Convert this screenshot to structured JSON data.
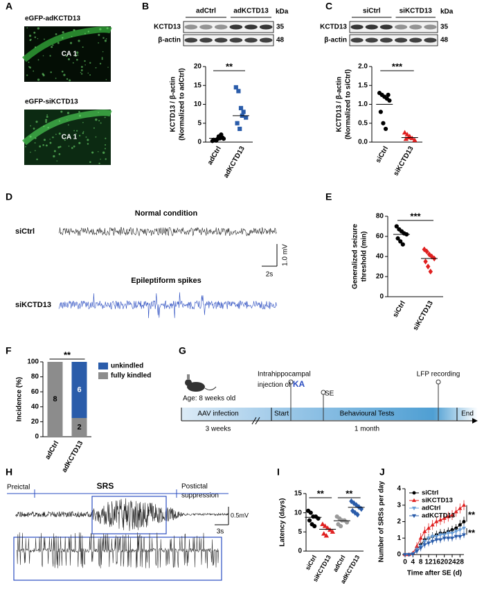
{
  "panel_labels": [
    "A",
    "B",
    "C",
    "D",
    "E",
    "F",
    "G",
    "H",
    "I",
    "J"
  ],
  "panel_a": {
    "captions": [
      "eGFP-adKCTD13",
      "eGFP-siKCTD13"
    ],
    "region_labels": [
      "CA 1",
      "CA 1"
    ]
  },
  "panel_b_blot": {
    "lanes": [
      "adCtrl",
      "adKCTD13"
    ],
    "unit": "kDa",
    "rows": [
      {
        "protein": "KCTD13",
        "kda": 35
      },
      {
        "protein": "β-actin",
        "kda": 48
      }
    ]
  },
  "panel_c_blot": {
    "lanes": [
      "siCtrl",
      "siKCTD13"
    ],
    "unit": "kDa",
    "rows": [
      {
        "protein": "KCTD13",
        "kda": 35
      },
      {
        "protein": "β-actin",
        "kda": 48
      }
    ]
  },
  "panel_d": {
    "conditions": [
      {
        "title": "Normal condition",
        "group": "siCtrl"
      },
      {
        "title": "Epileptiform spikes",
        "group": "siKCTD13"
      }
    ],
    "scale_y": "1.0 mV",
    "scale_x": "2s"
  },
  "panel_g": {
    "age": "Age: 8 weeks old",
    "injection": "Intrahippocampal",
    "injection_of": "injection of",
    "drug": "KA",
    "se": "SE",
    "lfp": "LFP recording",
    "phases": [
      "AAV infection",
      "Start",
      "Behavioural Tests",
      "End"
    ],
    "durations": [
      "3 weeks",
      "1 month"
    ]
  },
  "panel_h": {
    "preictal": "Preictal",
    "srs": "SRS",
    "postictal": [
      "Postictal",
      "suppression"
    ],
    "scale_y": "0.5mV",
    "scale_x": "3s"
  },
  "chart_data": [
    {
      "type": "strip",
      "ylabel": [
        "KCTD13 / β-actin",
        "(Normalized to adCtrl)"
      ],
      "categories": [
        "adCtrl",
        "adKCTD13"
      ],
      "values": [
        [
          0.3,
          0.5,
          0.8,
          1.0,
          1.2,
          0.6,
          0.4,
          1.5,
          2.0,
          0.9
        ],
        [
          14.5,
          13.5,
          9,
          8,
          6.5,
          5,
          3.5,
          7
        ]
      ],
      "means": [
        1,
        7
      ],
      "colors": [
        "#000000",
        "#2a5caa"
      ],
      "markers": [
        "circle",
        "square"
      ],
      "ylim": [
        0,
        20
      ],
      "yticks": [
        0,
        5,
        10,
        15,
        20
      ],
      "annotations": [
        "**"
      ]
    },
    {
      "type": "strip",
      "ylabel": [
        "KCTD13 / β-actin",
        "(Normalized to siCtrl)"
      ],
      "categories": [
        "siCtrl",
        "siKCTD13"
      ],
      "values": [
        [
          1.3,
          1.25,
          1.2,
          1.15,
          1.1,
          0.8,
          0.5,
          0.35,
          1.25
        ],
        [
          0.25,
          0.2,
          0.15,
          0.1,
          0.05,
          0.08,
          0.12
        ]
      ],
      "means": [
        1.0,
        0.12
      ],
      "colors": [
        "#000000",
        "#e02020"
      ],
      "markers": [
        "circle",
        "triangle"
      ],
      "ylim": [
        0,
        2
      ],
      "yticks": [
        {
          "value": 0,
          "label": "0.0"
        },
        0.5,
        {
          "value": 1,
          "label": "1.0"
        },
        1.5,
        {
          "value": 2,
          "label": "2.0"
        }
      ],
      "annotations": [
        "***"
      ]
    },
    {
      "type": "strip",
      "ylabel": [
        "Generalized seizure",
        "threshold (min)"
      ],
      "categories": [
        "siCtrl",
        "siKCTD13"
      ],
      "values": [
        [
          70,
          67,
          65,
          63,
          62,
          58,
          55,
          52
        ],
        [
          47,
          45,
          42,
          40,
          38,
          35,
          30,
          25
        ]
      ],
      "means": [
        62,
        38
      ],
      "colors": [
        "#000000",
        "#e02020"
      ],
      "markers": [
        "circle",
        "diamond"
      ],
      "ylim": [
        0,
        80
      ],
      "yticks": [
        0,
        20,
        40,
        60,
        80
      ],
      "annotations": [
        "***"
      ]
    },
    {
      "type": "stacked-bar",
      "ylabel": "Incidence (%)",
      "categories": [
        "adCtrl",
        "adKCTD13"
      ],
      "series": [
        {
          "name": "fully kindled",
          "color": "#8c8c8c",
          "values": [
            100,
            25
          ],
          "counts": [
            8,
            2
          ]
        },
        {
          "name": "unkindled",
          "color": "#2a5caa",
          "values": [
            0,
            75
          ],
          "counts": [
            null,
            6
          ]
        }
      ],
      "ylim": [
        0,
        100
      ],
      "yticks": [
        0,
        20,
        40,
        60,
        80,
        100
      ],
      "annotations": [
        "**"
      ],
      "legend": "right"
    },
    {
      "type": "strip",
      "ylabel": "Latency (days)",
      "categories": [
        "siCtrl",
        "siKCTD13",
        "adCtrl",
        "adKCTD13"
      ],
      "values": [
        [
          10.5,
          10,
          9,
          9,
          8.5,
          8,
          7,
          6.5
        ],
        [
          7,
          6.5,
          6,
          5.5,
          5,
          4.5,
          4
        ],
        [
          9,
          8.5,
          8,
          8,
          7.5,
          7,
          6.5
        ],
        [
          13,
          12.5,
          12,
          11.5,
          11,
          10.5,
          10,
          9.5
        ]
      ],
      "means": [
        8.8,
        5.7,
        7.9,
        11.4
      ],
      "colors": [
        "#000000",
        "#e02020",
        "#9a9a9a",
        "#2a5caa"
      ],
      "markers": [
        "circle",
        "triangle",
        "circle",
        "diamond"
      ],
      "ylim": [
        0,
        15
      ],
      "yticks": [
        0,
        5,
        10,
        15
      ],
      "annotations": [
        "**",
        "**"
      ]
    },
    {
      "type": "line",
      "ylabel": "Number of SRSs per day",
      "xlabel": "Time after SE (d)",
      "x": [
        0,
        2,
        4,
        6,
        8,
        10,
        12,
        14,
        16,
        18,
        20,
        22,
        24,
        26,
        28,
        30
      ],
      "series": [
        {
          "name": "siCtrl",
          "color": "#000000",
          "marker": "circle",
          "values": [
            0,
            0,
            0.05,
            0.3,
            0.6,
            0.9,
            1.0,
            1.1,
            1.2,
            1.3,
            1.3,
            1.4,
            1.5,
            1.6,
            1.8,
            2.0
          ],
          "errors": [
            0,
            0,
            0.1,
            0.2,
            0.2,
            0.25,
            0.25,
            0.25,
            0.25,
            0.25,
            0.25,
            0.25,
            0.25,
            0.25,
            0.3,
            0.3
          ]
        },
        {
          "name": "siKCTD13",
          "color": "#e02020",
          "marker": "triangle",
          "values": [
            0,
            0,
            0.1,
            0.5,
            1.0,
            1.4,
            1.6,
            1.8,
            2.0,
            2.1,
            2.2,
            2.3,
            2.4,
            2.6,
            2.8,
            3.0
          ],
          "errors": [
            0,
            0,
            0.1,
            0.25,
            0.3,
            0.3,
            0.3,
            0.3,
            0.3,
            0.3,
            0.3,
            0.3,
            0.3,
            0.3,
            0.3,
            0.3
          ]
        },
        {
          "name": "adCtrl",
          "color": "#6a9fd8",
          "marker": "triangle-down",
          "values": [
            0,
            0,
            0.05,
            0.3,
            0.5,
            0.8,
            1.0,
            1.1,
            1.1,
            1.2,
            1.2,
            1.3,
            1.3,
            1.4,
            1.5,
            1.6
          ],
          "errors": [
            0,
            0,
            0.1,
            0.2,
            0.2,
            0.2,
            0.2,
            0.2,
            0.2,
            0.2,
            0.2,
            0.2,
            0.2,
            0.2,
            0.25,
            0.25
          ]
        },
        {
          "name": "adKCTD13",
          "color": "#2a5caa",
          "marker": "triangle-down",
          "values": [
            0,
            0,
            0.03,
            0.2,
            0.4,
            0.6,
            0.7,
            0.8,
            0.9,
            0.9,
            1.0,
            1.0,
            1.0,
            1.1,
            1.1,
            1.2
          ],
          "errors": [
            0,
            0,
            0.1,
            0.15,
            0.2,
            0.2,
            0.2,
            0.2,
            0.2,
            0.2,
            0.2,
            0.2,
            0.2,
            0.2,
            0.2,
            0.2
          ]
        }
      ],
      "xlim": [
        0,
        30
      ],
      "xticks": [
        0,
        4,
        8,
        12,
        16,
        20,
        24,
        28
      ],
      "ylim": [
        0,
        4
      ],
      "yticks": [
        0,
        1,
        2,
        3,
        4
      ],
      "legend": "upper left",
      "annotations": [
        "**",
        "**"
      ]
    }
  ]
}
